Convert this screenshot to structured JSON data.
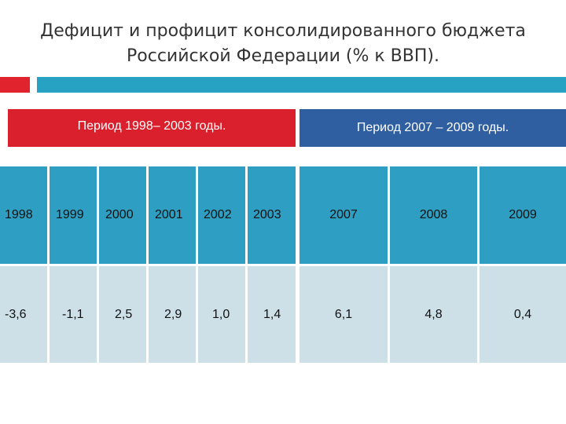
{
  "title": {
    "line1": "Дефицит и профицит консолидированного бюджета",
    "line2": "Российской Федерации (% к ВВП)."
  },
  "periods": {
    "first": "Период  1998– 2003 годы.",
    "second": "Период 2007 – 2009 годы."
  },
  "table": {
    "years": [
      "1998",
      "1999",
      "2000",
      "2001",
      "2002",
      "2003",
      "2007",
      "2008",
      "2009"
    ],
    "values": [
      "-3,6",
      "-1,1",
      "2,5",
      "2,9",
      "1,0",
      "1,4",
      "6,1",
      "4,8",
      "0,4"
    ]
  },
  "colors": {
    "accent_red": "#e0232d",
    "accent_blue": "#28a2c2",
    "header_cells": "#2e9fc2",
    "value_cells": "#cde0e8",
    "period_red": "#d9202c",
    "period_blue": "#2f5fa0"
  }
}
